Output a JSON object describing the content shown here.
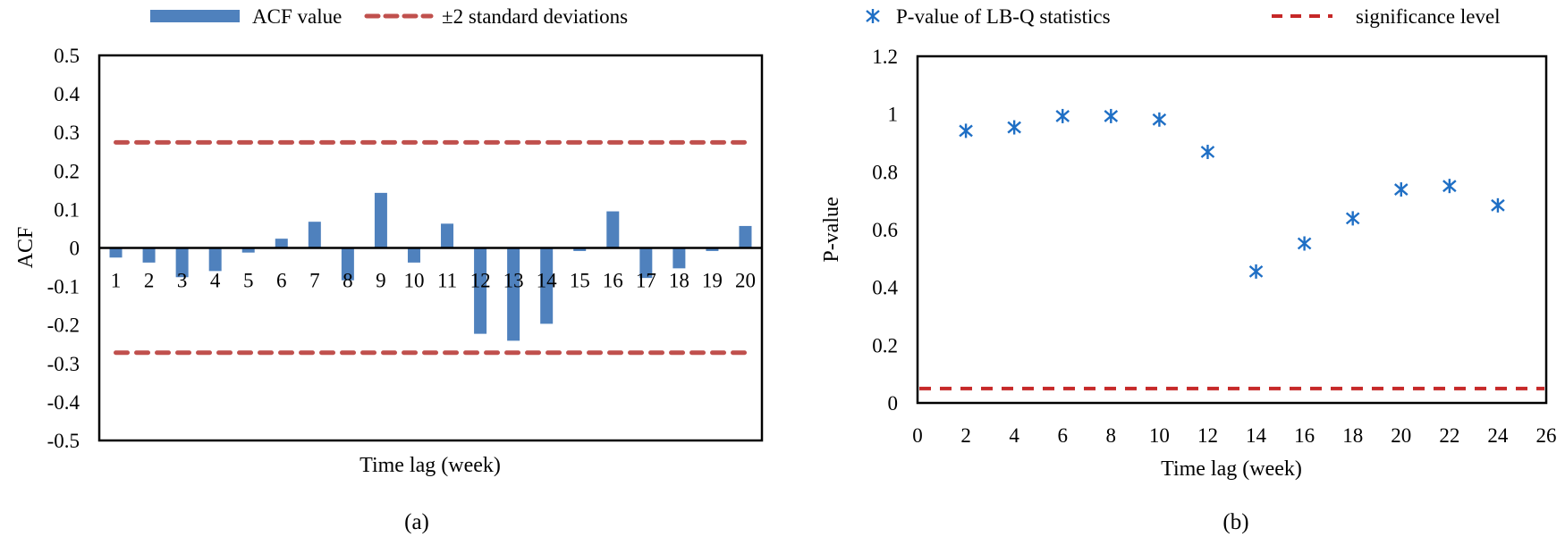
{
  "chart_data": [
    {
      "type": "bar",
      "panel_caption": "(a)",
      "xlabel": "Time lag (week)",
      "ylabel": "ACF",
      "ylim": [
        -0.5,
        0.5
      ],
      "yticks": [
        "0.5",
        "0.4",
        "0.3",
        "0.2",
        "0.1",
        "0",
        "-0.1",
        "-0.2",
        "-0.3",
        "-0.4",
        "-0.5"
      ],
      "categories": [
        "1",
        "2",
        "3",
        "4",
        "5",
        "6",
        "7",
        "8",
        "9",
        "10",
        "11",
        "12",
        "13",
        "14",
        "15",
        "16",
        "17",
        "18",
        "19",
        "20"
      ],
      "series": [
        {
          "name": "ACF value",
          "color": "#4F81BD",
          "values": [
            -0.025,
            -0.038,
            -0.076,
            -0.06,
            -0.012,
            0.024,
            0.068,
            -0.084,
            0.143,
            -0.038,
            0.063,
            -0.223,
            -0.241,
            -0.197,
            -0.008,
            0.095,
            -0.078,
            -0.053,
            -0.008,
            0.057
          ]
        }
      ],
      "reference_lines": {
        "name": "±2 standard deviations",
        "color": "#C0504D",
        "style": "dashed",
        "values": [
          0.274,
          -0.272
        ]
      },
      "grid": false,
      "legend": "top"
    },
    {
      "type": "scatter",
      "panel_caption": "(b)",
      "xlabel": "Time lag (week)",
      "ylabel": "P-value",
      "xlim": [
        0,
        26
      ],
      "ylim": [
        0,
        1.2
      ],
      "xticks": [
        "0",
        "2",
        "4",
        "6",
        "8",
        "10",
        "12",
        "14",
        "16",
        "18",
        "20",
        "22",
        "24",
        "26"
      ],
      "yticks": [
        "1.2",
        "1",
        "0.8",
        "0.6",
        "0.4",
        "0.2",
        "0"
      ],
      "series": [
        {
          "name": "P-value of LB-Q statistics",
          "color": "#1F6FC5",
          "marker": "asterisk",
          "x": [
            2,
            4,
            6,
            8,
            10,
            12,
            14,
            16,
            18,
            20,
            22,
            24
          ],
          "y": [
            0.942,
            0.954,
            0.993,
            0.993,
            0.981,
            0.869,
            0.455,
            0.552,
            0.639,
            0.739,
            0.751,
            0.684
          ]
        }
      ],
      "reference_lines": {
        "name": "significance level",
        "color": "#C62828",
        "style": "dashed",
        "values": [
          0.05
        ]
      },
      "grid": false,
      "legend": "top"
    }
  ]
}
